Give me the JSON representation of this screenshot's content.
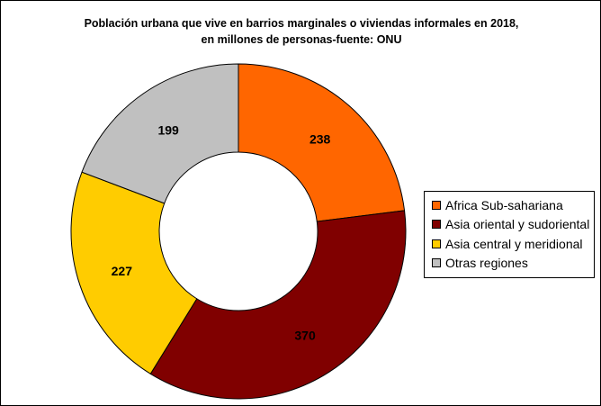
{
  "chart_data": {
    "type": "pie",
    "variant": "donut",
    "title_lines": [
      "Población urbana que vive en barrios marginales o viviendas informales en 2018,",
      "en millones de personas-fuente: ONU"
    ],
    "categories": [
      "Africa Sub-sahariana",
      "Asia oriental y sudoriental",
      "Asia central y meridional",
      "Otras regiones"
    ],
    "values": [
      238,
      370,
      227,
      199
    ],
    "value_labels": [
      "238",
      "370",
      "227",
      "199"
    ],
    "colors": [
      "#ff6600",
      "#800000",
      "#ffcc00",
      "#c0c0c0"
    ],
    "legend_position": "right"
  }
}
